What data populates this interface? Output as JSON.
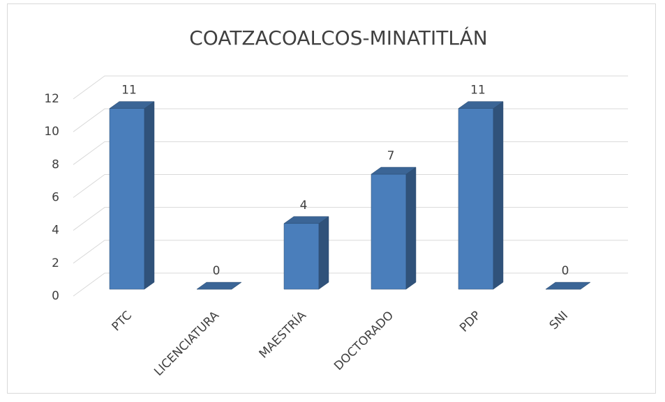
{
  "chart_data": {
    "type": "bar3d",
    "title": "COATZACOALCOS-MINATITLÁN",
    "categories": [
      "PTC",
      "LICENCIATURA",
      "MAESTRÍA",
      "DOCTORADO",
      "PDP",
      "SNI"
    ],
    "values": [
      11,
      0,
      4,
      7,
      11,
      0
    ],
    "color": "#4a7ebb",
    "ylim": [
      0,
      12
    ],
    "yticks": [
      0,
      2,
      4,
      6,
      8,
      10,
      12
    ],
    "grid": true,
    "data_labels": true
  }
}
